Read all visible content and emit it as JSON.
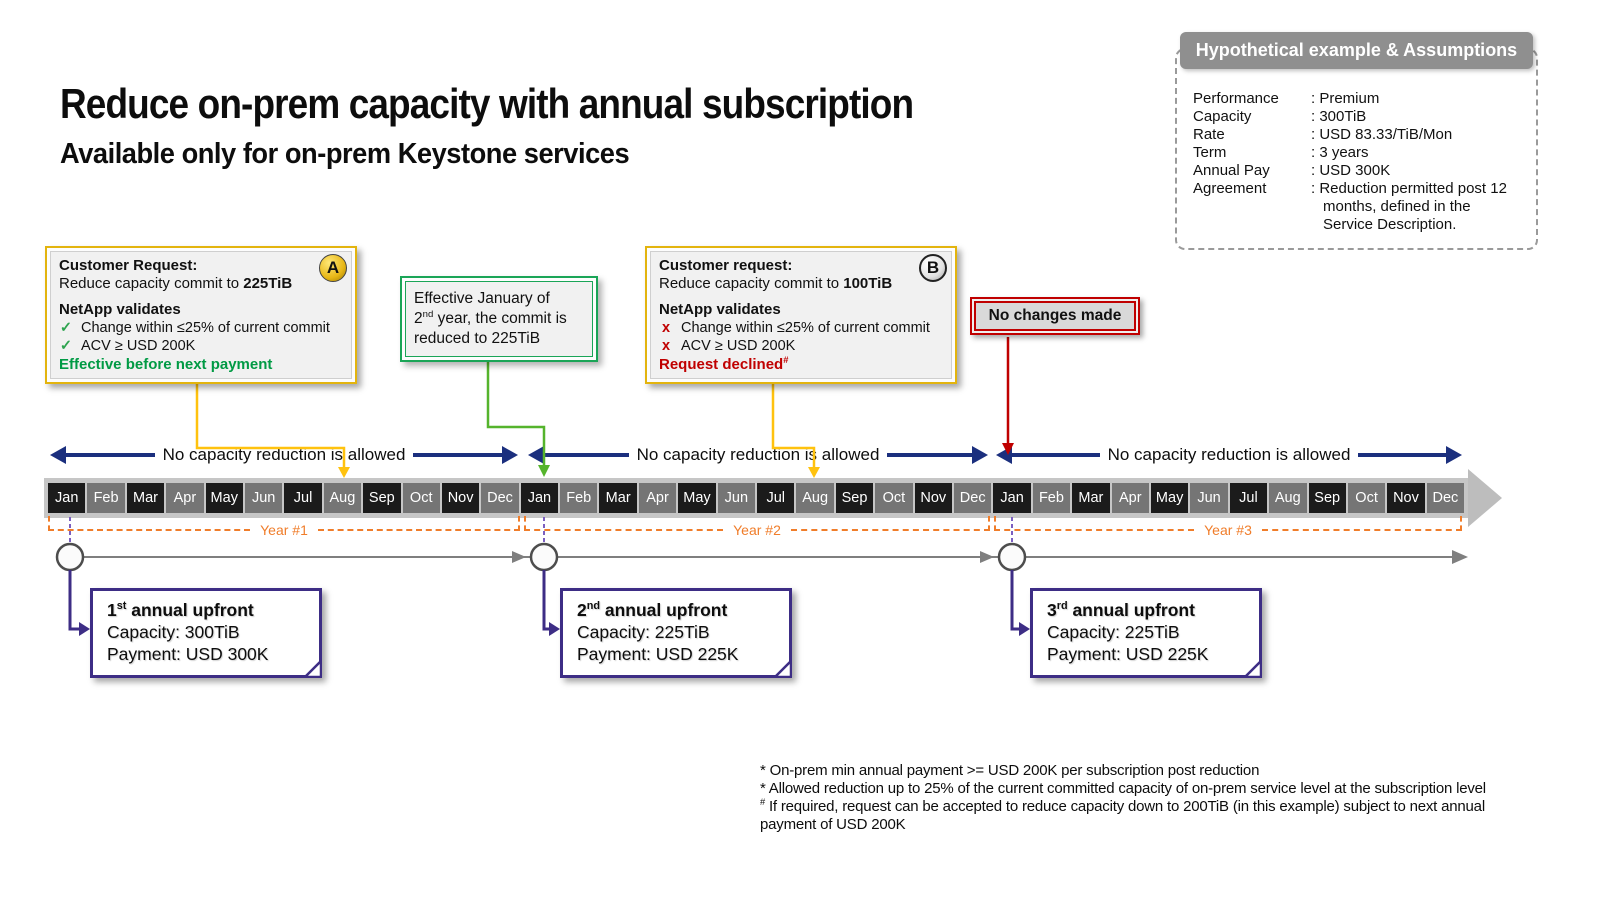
{
  "slide": {
    "title": "Reduce on-prem capacity with annual subscription",
    "subtitle": "Available only for on-prem Keystone services"
  },
  "assumptions": {
    "header": "Hypothetical example & Assumptions",
    "rows": [
      {
        "label": "Performance",
        "value": ": Premium"
      },
      {
        "label": "Capacity",
        "value": ": 300TiB"
      },
      {
        "label": "Rate",
        "value": ": USD 83.33/TiB/Mon"
      },
      {
        "label": "Term",
        "value": ": 3 years"
      },
      {
        "label": "Annual Pay",
        "value": ": USD 300K"
      },
      {
        "label": "Agreement",
        "value": ": Reduction permitted post 12 months, defined in the Service Description."
      }
    ]
  },
  "callout_a": {
    "badge": "A",
    "request_title": "Customer Request:",
    "request_text": "Reduce capacity commit to ",
    "request_bold": "225TiB",
    "validates_title": "NetApp validates",
    "checks": [
      {
        "mark": "✓",
        "text": "Change within ≤25% of current commit"
      },
      {
        "mark": "✓",
        "text": "ACV ≥ USD 200K"
      }
    ],
    "result": "Effective before next payment"
  },
  "callout_b": {
    "badge": "B",
    "request_title": "Customer request:",
    "request_text": "Reduce capacity commit to ",
    "request_bold": "100TiB",
    "validates_title": "NetApp validates",
    "checks": [
      {
        "mark": "x",
        "text": "Change within ≤25% of current commit"
      },
      {
        "mark": "x",
        "text": "ACV ≥ USD 200K"
      }
    ],
    "result": "Request declined",
    "result_sup": "#"
  },
  "green_note": {
    "line1": "Effective January of",
    "line2_num": "2",
    "line2_sup": "nd",
    "line2_rest": " year, the commit is",
    "line3": "reduced to 225TiB"
  },
  "no_changes": {
    "label": "No changes made"
  },
  "timeline": {
    "months": [
      "Jan",
      "Feb",
      "Mar",
      "Apr",
      "May",
      "Jun",
      "Jul",
      "Aug",
      "Sep",
      "Oct",
      "Nov",
      "Dec"
    ],
    "years": [
      "Year #1",
      "Year #2",
      "Year #3"
    ],
    "no_reduction_label": "No capacity reduction is allowed"
  },
  "payments": [
    {
      "num": "1",
      "sup": "st",
      "rest": " annual upfront",
      "capacity": "Capacity: 300TiB",
      "payment": "Payment: USD 300K"
    },
    {
      "num": "2",
      "sup": "nd",
      "rest": " annual upfront",
      "capacity": "Capacity: 225TiB",
      "payment": "Payment: USD 225K"
    },
    {
      "num": "3",
      "sup": "rd",
      "rest": " annual upfront",
      "capacity": "Capacity: 225TiB",
      "payment": "Payment: USD 225K"
    }
  ],
  "footnotes": [
    {
      "marker": "*",
      "text": " On-prem min annual payment >= USD 200K per subscription post reduction"
    },
    {
      "marker": "*",
      "text": " Allowed reduction up to 25% of the current committed capacity of on-prem service level at the subscription level"
    },
    {
      "marker": "#",
      "text": " If required, request can be accepted to reduce capacity down to 200TiB (in this example) subject to next annual payment of USD 200K"
    }
  ],
  "colors": {
    "gold": "#E3B40E",
    "yellow": "#FFC20E",
    "green-box": "#1AA557",
    "green-arrow": "#55B42C",
    "navy": "#1B2F7E",
    "red": "#C00000",
    "orange": "#F07D2A",
    "purple": "#3D2D85",
    "month-dark": "#1B1B1B",
    "month-gray": "#757575",
    "band": "#C6C6C6",
    "panel-gray": "#8F8F8F"
  }
}
